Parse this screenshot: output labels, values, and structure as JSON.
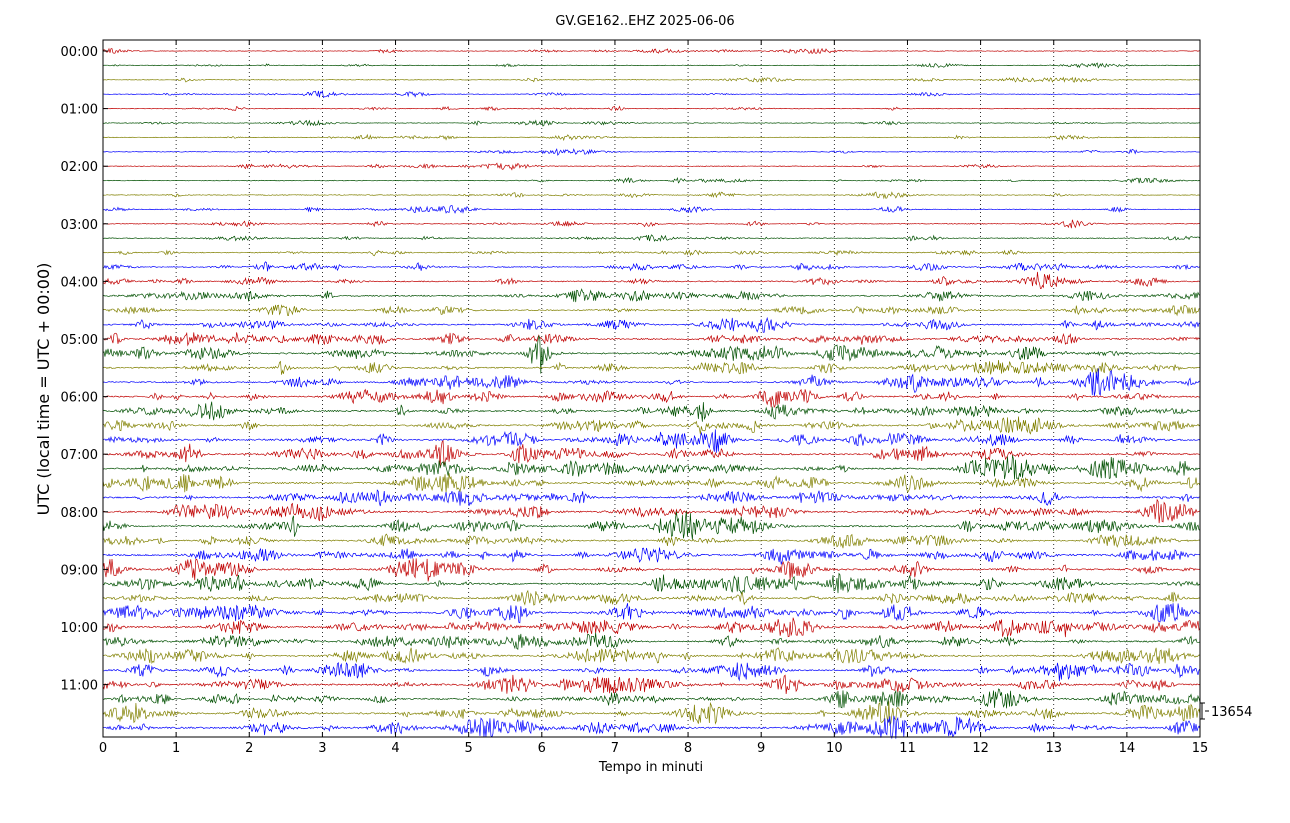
{
  "chart_data": {
    "type": "line",
    "title": "GV.GE162..EHZ 2025-06-06",
    "xlabel": "Tempo in minuti",
    "ylabel": "UTC (local time = UTC + 00:00)",
    "xlim": [
      0,
      15
    ],
    "x_ticks": [
      "0",
      "1",
      "2",
      "3",
      "4",
      "5",
      "6",
      "7",
      "8",
      "9",
      "10",
      "11",
      "12",
      "13",
      "14",
      "15"
    ],
    "y_ticks": [
      "00:00",
      "01:00",
      "02:00",
      "03:00",
      "04:00",
      "05:00",
      "06:00",
      "07:00",
      "08:00",
      "09:00",
      "10:00",
      "11:00"
    ],
    "trace_minutes": 15,
    "trace_count": 48,
    "trace_colors": [
      "#c00000",
      "#005000",
      "#808000",
      "#0000ff"
    ],
    "grid": "vertical-dotted",
    "scale_label": "13654",
    "activity_profile": [
      0.07,
      0.06,
      0.05,
      0.06,
      0.07,
      0.07,
      0.07,
      0.08,
      0.08,
      0.1,
      0.11,
      0.12,
      0.13,
      0.16,
      0.22,
      0.3,
      0.34,
      0.4,
      0.38,
      0.44,
      0.5,
      0.56,
      0.52,
      0.48,
      0.52,
      0.54,
      0.5,
      0.58,
      0.56,
      0.6,
      0.54,
      0.6,
      0.56,
      0.58,
      0.46,
      0.6,
      0.56,
      0.62,
      0.58,
      0.6,
      0.62,
      0.6,
      0.58,
      0.6,
      0.62,
      0.6,
      0.56,
      0.62
    ]
  }
}
